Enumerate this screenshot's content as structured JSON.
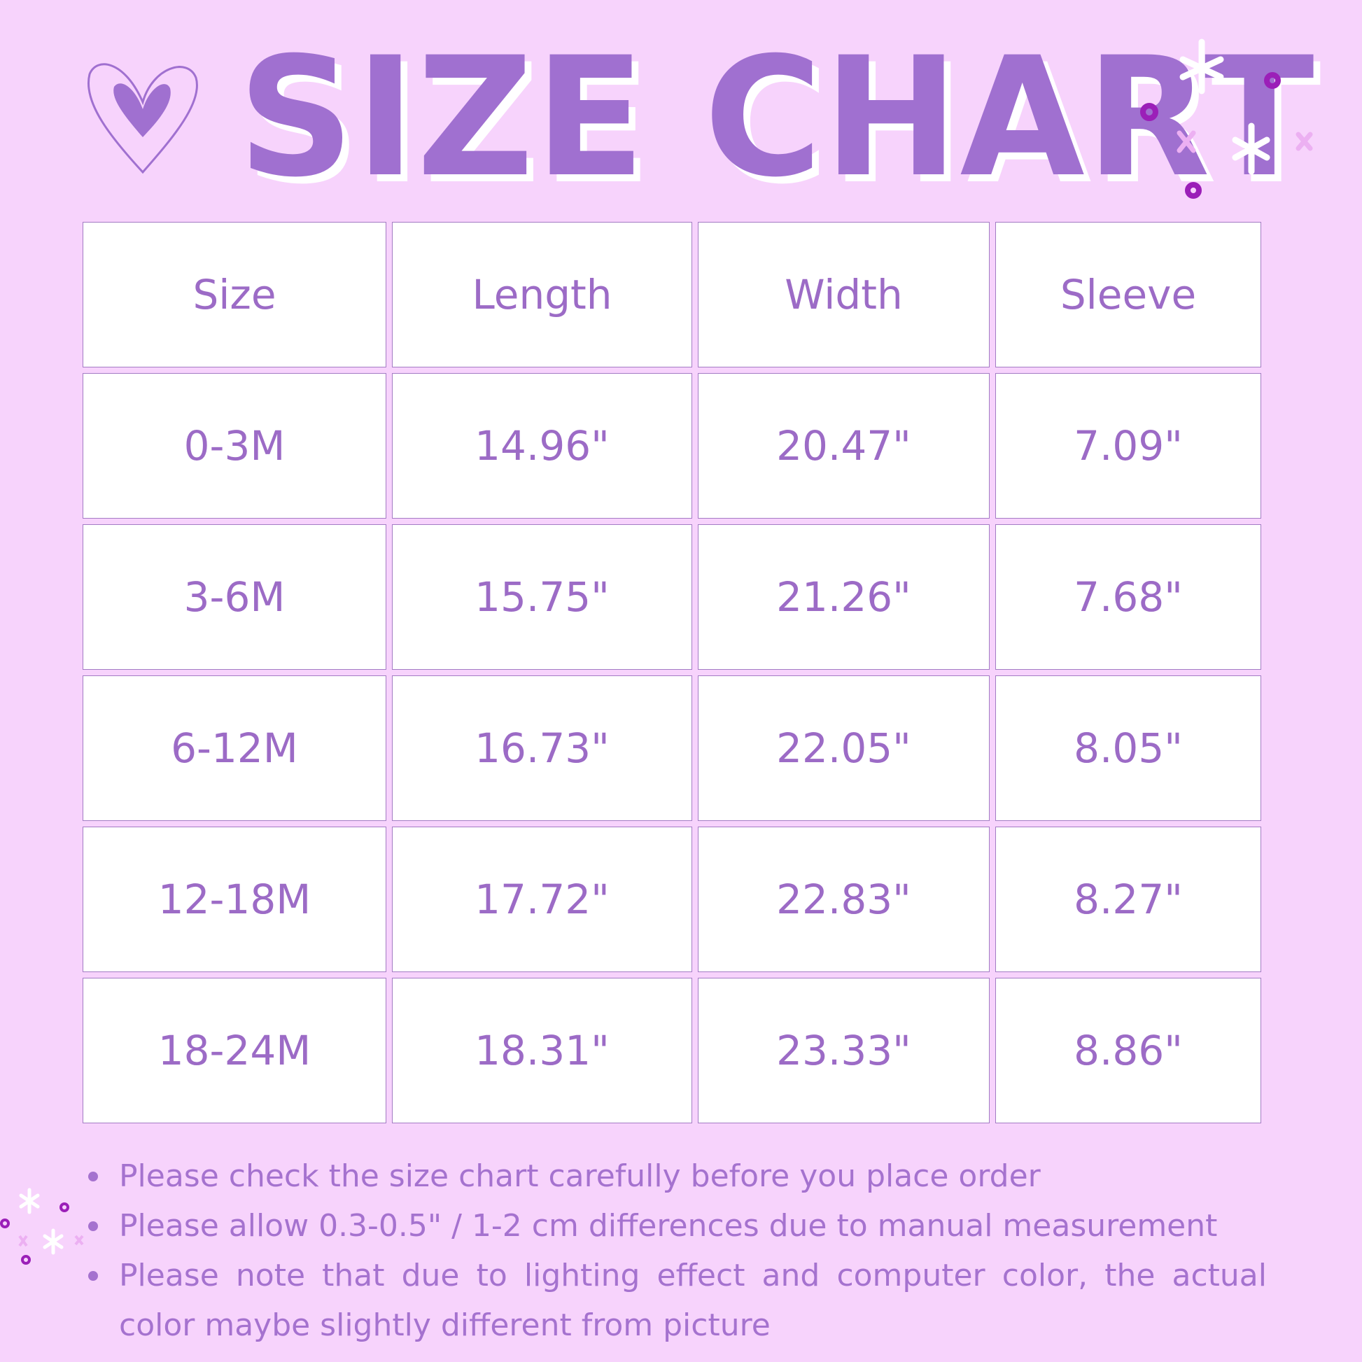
{
  "title": "SIZE CHART",
  "colors": {
    "background": "#f7d3fc",
    "accent": "#a070d0",
    "cell": "#ffffff",
    "dots": "#9b1fb8"
  },
  "icons": [
    "heart-icon",
    "sparkles-icon"
  ],
  "table": {
    "headers": [
      "Size",
      "Length",
      "Width",
      "Sleeve"
    ],
    "rows": [
      [
        "0-3M",
        "14.96\"",
        "20.47\"",
        "7.09\""
      ],
      [
        "3-6M",
        "15.75\"",
        "21.26\"",
        "7.68\""
      ],
      [
        "6-12M",
        "16.73\"",
        "22.05\"",
        "8.05\""
      ],
      [
        "12-18M",
        "17.72\"",
        "22.83\"",
        "8.27\""
      ],
      [
        "18-24M",
        "18.31\"",
        "23.33\"",
        "8.86\""
      ]
    ]
  },
  "notes": [
    "Please check the size chart carefully before you place order",
    "Please allow 0.3-0.5\" / 1-2 cm differences due to manual measurement",
    "Please note that due to lighting effect and computer color, the actual color maybe slightly different from picture"
  ]
}
